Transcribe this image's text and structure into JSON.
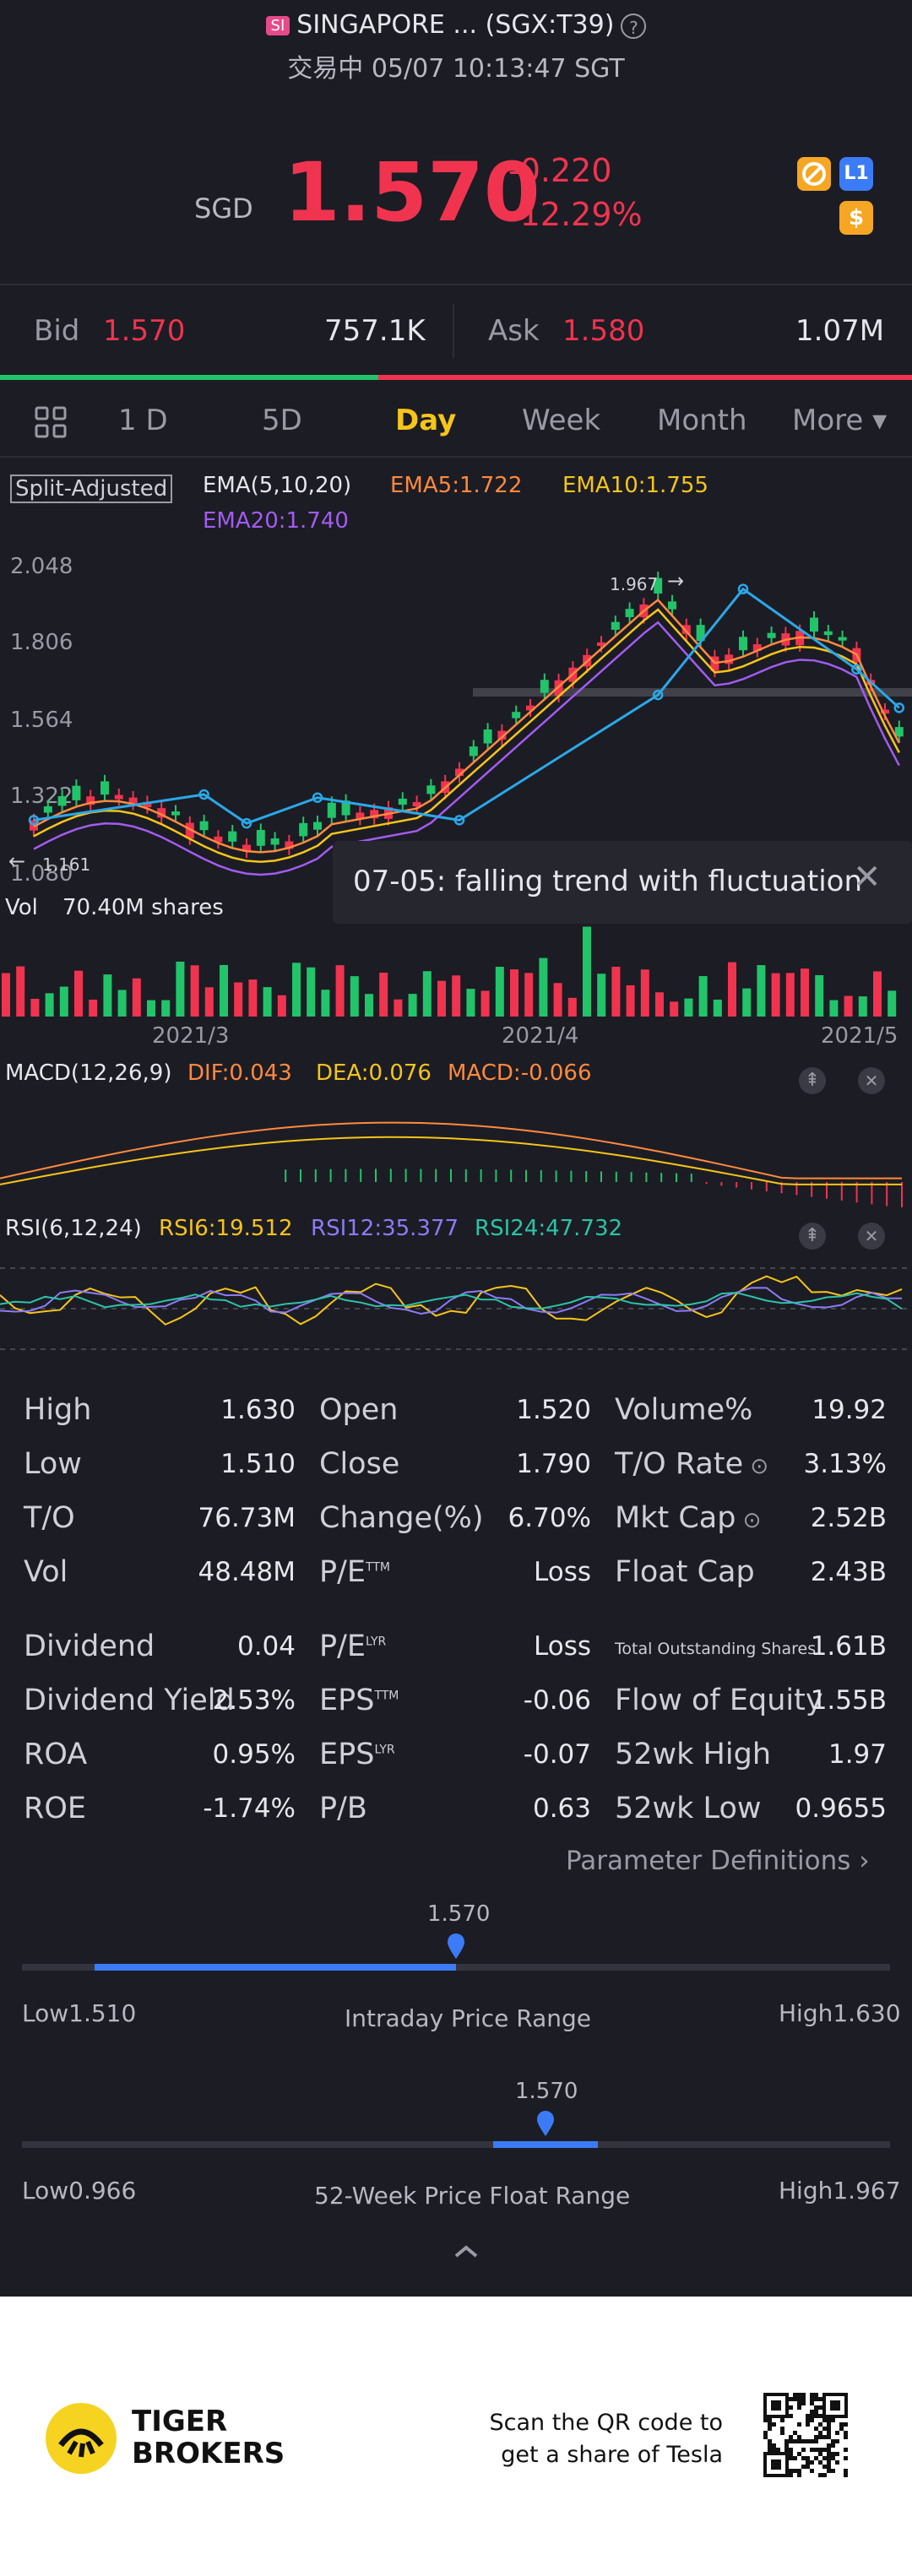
{
  "header": {
    "exchange_badge": "SI",
    "title": "SINGAPORE ... (SGX:T39)",
    "status": "交易中 05/07 10:13:47 SGT"
  },
  "quote": {
    "currency": "SGD",
    "price": "1.570",
    "change": "-0.220",
    "change_pct": "-12.29%"
  },
  "icons": {
    "badge1": "no-entry-icon",
    "badge2": "L1",
    "badge3": "$"
  },
  "bidask": {
    "bid_label": "Bid",
    "bid_price": "1.570",
    "bid_size": "757.1K",
    "ask_label": "Ask",
    "ask_price": "1.580",
    "ask_size": "1.07M"
  },
  "tabs": [
    "1 D",
    "5D",
    "Day",
    "Week",
    "Month",
    "More ▾"
  ],
  "active_tab": "Day",
  "chart": {
    "adjust_label": "Split-Adjusted",
    "ema_label": "EMA(5,10,20)",
    "ema5": "EMA5:1.722",
    "ema10": "EMA10:1.755",
    "ema20": "EMA20:1.740",
    "price_ticks": [
      "2.048",
      "1.806",
      "1.564",
      "1.322",
      "1.080"
    ],
    "low_marker": "1.161",
    "high_marker": "1.967",
    "trend_note": "07-05: falling trend with fluctuation",
    "vol_label": "Vol",
    "vol_value": "70.40M shares",
    "x_ticks": [
      "2021/3",
      "2021/4",
      "2021/5"
    ],
    "macd_label": "MACD(12,26,9)",
    "dif": "DIF:0.043",
    "dea": "DEA:0.076",
    "macd": "MACD:-0.066",
    "rsi_label": "RSI(6,12,24)",
    "rsi6": "RSI6:19.512",
    "rsi12": "RSI12:35.377",
    "rsi24": "RSI24:47.732"
  },
  "colors": {
    "up": "#f0344f",
    "down": "#22c46a",
    "ema5": "#ff8a3d",
    "ema10": "#f5c518",
    "ema20": "#a25cf0",
    "accent": "#3b7cf6",
    "active_tab": "#f5c518",
    "trend": "#2aa8e8"
  },
  "stats": {
    "col1": [
      {
        "k": "High",
        "v": "1.630"
      },
      {
        "k": "Low",
        "v": "1.510"
      },
      {
        "k": "T/O",
        "v": "76.73M"
      },
      {
        "k": "Vol",
        "v": "48.48M"
      },
      {
        "k": "Dividend",
        "v": "0.04"
      },
      {
        "k": "Dividend Yield",
        "v": "2.53%"
      },
      {
        "k": "ROA",
        "v": "0.95%"
      },
      {
        "k": "ROE",
        "v": "-1.74%"
      }
    ],
    "col2": [
      {
        "k": "Open",
        "v": "1.520"
      },
      {
        "k": "Close",
        "v": "1.790"
      },
      {
        "k": "Change(%)",
        "v": "6.70%"
      },
      {
        "k": "P/E",
        "sup": "TTM",
        "v": "Loss"
      },
      {
        "k": "P/E",
        "sup": "LYR",
        "v": "Loss"
      },
      {
        "k": "EPS",
        "sup": "TTM",
        "v": "-0.06"
      },
      {
        "k": "EPS",
        "sup": "LYR",
        "v": "-0.07"
      },
      {
        "k": "P/B",
        "v": "0.63"
      }
    ],
    "col3": [
      {
        "k": "Volume%",
        "v": "19.92"
      },
      {
        "k": "T/O Rate",
        "v": "3.13%"
      },
      {
        "k": "Mkt Cap",
        "v": "2.52B"
      },
      {
        "k": "Float Cap",
        "v": "2.43B"
      },
      {
        "k": "Total Outstanding Shares",
        "v": "1.61B"
      },
      {
        "k": "Flow of Equity",
        "v": "1.55B"
      },
      {
        "k": "52wk High",
        "v": "1.97"
      },
      {
        "k": "52wk Low",
        "v": "0.9655"
      }
    ],
    "param_link": "Parameter Definitions"
  },
  "intraday": {
    "value": "1.570",
    "low": "Low1.510",
    "high": "High1.630",
    "label": "Intraday Price Range",
    "position": 0.5
  },
  "week52": {
    "value": "1.570",
    "low": "Low0.966",
    "high": "High1.967",
    "label": "52-Week Price Float Range",
    "position": 0.6
  },
  "footer": {
    "brand_line1": "TIGER",
    "brand_line2": "BROKERS",
    "qr_text1": "Scan the QR code to",
    "qr_text2": "get a share of Tesla"
  }
}
